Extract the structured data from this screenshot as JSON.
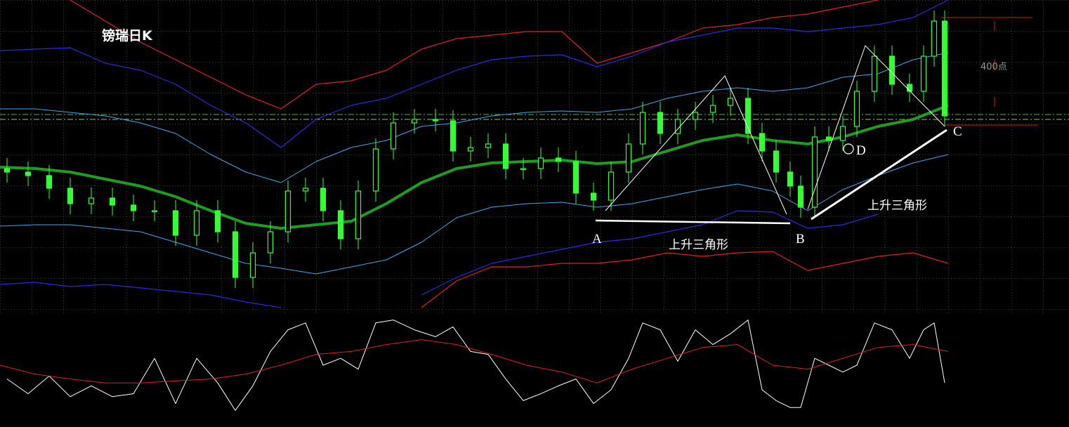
{
  "title": "镑瑞日K",
  "chart_data": {
    "type": "candlestick",
    "xlim": [
      0,
      1522
    ],
    "ylim": [
      0,
      440
    ],
    "color": "#33ff33",
    "x": [
      10,
      40,
      70,
      100,
      130,
      160,
      190,
      220,
      250,
      280,
      310,
      335,
      360,
      385,
      410,
      435,
      460,
      485,
      510,
      535,
      560,
      590,
      620,
      645,
      670,
      695,
      720,
      745,
      770,
      795,
      820,
      845,
      870,
      895,
      915,
      940,
      965,
      990,
      1015,
      1040,
      1065,
      1085,
      1105,
      1125,
      1140,
      1160,
      1180,
      1200,
      1220,
      1245,
      1270,
      1295,
      1315,
      1330,
      1345
    ],
    "open": [
      200,
      195,
      190,
      172,
      150,
      158,
      148,
      140,
      140,
      105,
      140,
      110,
      45,
      80,
      110,
      168,
      172,
      140,
      100,
      168,
      228,
      265,
      270,
      268,
      225,
      230,
      235,
      200,
      200,
      215,
      210,
      165,
      155,
      195,
      235,
      280,
      250,
      270,
      280,
      290,
      300,
      250,
      225,
      195,
      175,
      145,
      245,
      240,
      260,
      310,
      360,
      320,
      310,
      360,
      410
    ],
    "high": [
      215,
      210,
      205,
      187,
      173,
      173,
      163,
      155,
      155,
      155,
      155,
      125,
      95,
      125,
      183,
      187,
      187,
      155,
      183,
      243,
      280,
      285,
      285,
      283,
      245,
      250,
      250,
      215,
      230,
      230,
      225,
      180,
      210,
      250,
      295,
      295,
      285,
      295,
      305,
      315,
      315,
      265,
      240,
      210,
      190,
      260,
      260,
      275,
      325,
      375,
      375,
      335,
      375,
      425,
      425
    ],
    "low": [
      180,
      175,
      157,
      135,
      135,
      133,
      125,
      125,
      90,
      90,
      95,
      30,
      30,
      65,
      95,
      153,
      125,
      85,
      85,
      153,
      213,
      250,
      253,
      210,
      210,
      215,
      185,
      185,
      185,
      195,
      150,
      140,
      140,
      180,
      220,
      235,
      235,
      255,
      265,
      275,
      235,
      210,
      180,
      160,
      130,
      130,
      225,
      225,
      245,
      295,
      305,
      295,
      295,
      345,
      260
    ],
    "close": [
      195,
      190,
      172,
      150,
      158,
      148,
      140,
      140,
      105,
      140,
      110,
      45,
      80,
      110,
      168,
      172,
      140,
      100,
      168,
      228,
      265,
      270,
      268,
      225,
      230,
      235,
      200,
      200,
      215,
      210,
      165,
      155,
      195,
      235,
      280,
      250,
      270,
      280,
      290,
      300,
      250,
      225,
      195,
      175,
      145,
      245,
      240,
      260,
      310,
      360,
      320,
      310,
      360,
      410,
      275
    ],
    "band_x": [
      0,
      50,
      100,
      150,
      200,
      250,
      300,
      350,
      400,
      450,
      500,
      550,
      600,
      650,
      700,
      750,
      800,
      850,
      900,
      950,
      1000,
      1050,
      1100,
      1150,
      1200,
      1250,
      1300,
      1350
    ],
    "bands": [
      {
        "color": "#e02020",
        "width": 1.2,
        "values": [
          null,
          null,
          440,
          410,
          380,
          355,
          330,
          305,
          285,
          320,
          325,
          340,
          370,
          385,
          390,
          395,
          395,
          350,
          365,
          380,
          400,
          405,
          415,
          420,
          430,
          440,
          null,
          null
        ]
      },
      {
        "color": "#2a2ae0",
        "width": 1.2,
        "values": [
          368,
          370,
          372,
          350,
          340,
          320,
          290,
          265,
          230,
          270,
          290,
          300,
          320,
          340,
          355,
          360,
          362,
          345,
          360,
          380,
          390,
          400,
          400,
          395,
          400,
          405,
          415,
          440
        ]
      },
      {
        "color": "#3aa8f0",
        "width": 1,
        "values": [
          285,
          285,
          280,
          275,
          265,
          250,
          220,
          195,
          180,
          210,
          230,
          240,
          260,
          265,
          275,
          280,
          282,
          280,
          285,
          300,
          310,
          315,
          310,
          315,
          330,
          335,
          355,
          365
        ]
      },
      {
        "color": "#1e9e1e",
        "width": 4,
        "values": [
          202,
          200,
          195,
          185,
          175,
          160,
          140,
          122,
          115,
          120,
          125,
          150,
          180,
          200,
          208,
          210,
          212,
          207,
          210,
          225,
          240,
          248,
          240,
          235,
          245,
          260,
          270,
          290
        ]
      },
      {
        "color": "#3aa8f0",
        "width": 1,
        "values": [
          118,
          120,
          120,
          115,
          110,
          95,
          80,
          65,
          58,
          50,
          60,
          70,
          95,
          130,
          145,
          150,
          152,
          145,
          150,
          160,
          170,
          178,
          168,
          140,
          170,
          190,
          208,
          220
        ]
      },
      {
        "color": "#2a2ae0",
        "width": 1.2,
        "values": [
          35,
          38,
          32,
          35,
          30,
          25,
          20,
          10,
          2,
          null,
          null,
          null,
          20,
          45,
          65,
          75,
          85,
          95,
          100,
          110,
          120,
          140,
          138,
          115,
          120,
          135,
          null,
          null
        ]
      },
      {
        "color": "#e02020",
        "width": 1.2,
        "values": [
          null,
          null,
          null,
          null,
          null,
          null,
          null,
          null,
          null,
          null,
          null,
          null,
          2,
          40,
          60,
          60,
          65,
          65,
          70,
          80,
          75,
          80,
          82,
          55,
          65,
          75,
          80,
          65
        ]
      }
    ],
    "levels": [
      {
        "value": 277,
        "color": "#44bb44"
      },
      {
        "value": 270,
        "color": "#99cc44"
      }
    ],
    "oscillator": {
      "ylim": [
        0,
        100
      ],
      "series": [
        {
          "color": "#ffffff",
          "x": [
            10,
            40,
            70,
            100,
            130,
            160,
            190,
            220,
            250,
            280,
            310,
            335,
            360,
            385,
            410,
            435,
            460,
            485,
            510,
            535,
            560,
            590,
            620,
            645,
            670,
            695,
            720,
            745,
            770,
            795,
            820,
            845,
            870,
            895,
            915,
            940,
            965,
            990,
            1015,
            1040,
            1065,
            1085,
            1105,
            1125,
            1140,
            1160,
            1180,
            1200,
            1220,
            1245,
            1270,
            1295,
            1315,
            1330,
            1345
          ],
          "values": [
            36,
            21,
            39,
            18,
            29,
            18,
            21,
            57,
            11,
            57,
            32,
            4,
            29,
            64,
            86,
            93,
            50,
            57,
            46,
            93,
            96,
            86,
            79,
            89,
            64,
            61,
            36,
            14,
            21,
            29,
            36,
            11,
            25,
            57,
            93,
            86,
            54,
            86,
            71,
            82,
            96,
            25,
            14,
            7,
            7,
            57,
            50,
            43,
            50,
            93,
            86,
            57,
            86,
            93,
            32
          ]
        },
        {
          "color": "#e02020",
          "x": [
            0,
            50,
            100,
            150,
            200,
            250,
            300,
            350,
            400,
            450,
            500,
            550,
            600,
            650,
            700,
            750,
            800,
            850,
            900,
            950,
            1000,
            1050,
            1100,
            1150,
            1200,
            1250,
            1300,
            1350
          ],
          "values": [
            50,
            41,
            36,
            32,
            32,
            34,
            36,
            41,
            50,
            61,
            64,
            71,
            76,
            71,
            61,
            50,
            43,
            32,
            46,
            57,
            68,
            71,
            50,
            46,
            57,
            68,
            71,
            64
          ]
        }
      ]
    }
  },
  "annotations": {
    "labels": [
      "A",
      "B",
      "C",
      "D",
      "上升三角形",
      "上升三角形",
      "400点"
    ]
  }
}
